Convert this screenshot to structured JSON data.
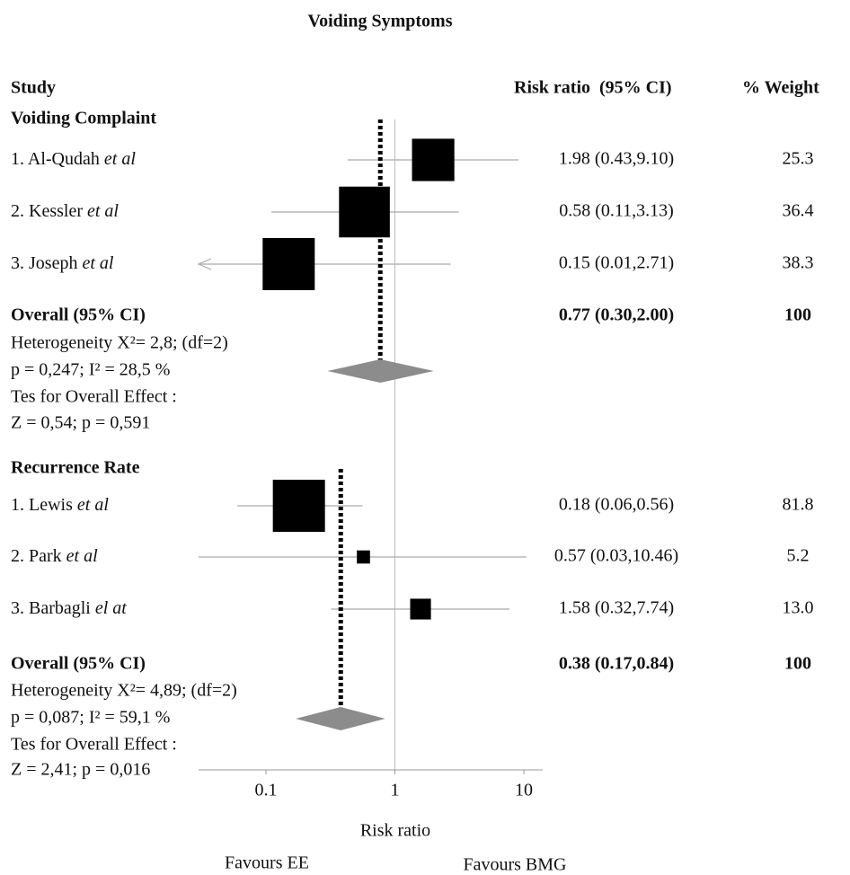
{
  "chart_data": {
    "type": "forest",
    "title": "Voiding Symptoms",
    "headers": {
      "study": "Study",
      "ratio": "Risk ratio  (95% CI)",
      "weight": "% Weight"
    },
    "xlim": [
      0.03,
      14
    ],
    "xticks": [
      0.1,
      1,
      10
    ],
    "reference_line": 1,
    "xlabel": "Risk ratio",
    "favours_left": "Favours EE",
    "favours_right": "Favours BMG",
    "groups": [
      {
        "name": "Voiding Complaint",
        "studies": [
          {
            "name": "1. Al-Qudah",
            "name_suffix": "et al",
            "value": 1.98,
            "ci_lower": 0.43,
            "ci_upper": 9.1,
            "value_label": "1.98 (0.43,9.10)",
            "weight": 25.3
          },
          {
            "name": "2. Kessler",
            "name_suffix": "et al",
            "value": 0.58,
            "ci_lower": 0.11,
            "ci_upper": 3.13,
            "value_label": "0.58 (0.11,3.13)",
            "weight": 36.4
          },
          {
            "name": "3. Joseph",
            "name_suffix": "et al",
            "value": 0.15,
            "ci_lower": 0.01,
            "ci_upper": 2.71,
            "value_label": "0.15 (0.01,2.71)",
            "weight": 38.3
          }
        ],
        "overall": {
          "name": "Overall (95% CI)",
          "value": 0.77,
          "ci_lower": 0.3,
          "ci_upper": 2.0,
          "value_label": "0.77 (0.30,2.00)",
          "weight": 100
        },
        "notes": [
          "Heterogeneity X²= 2,8; (df=2)",
          "p = 0,247; I² = 28,5 %",
          "Tes for Overall Effect :",
          "Z = 0,54; p = 0,591"
        ]
      },
      {
        "name": "Recurrence Rate",
        "studies": [
          {
            "name": "1. Lewis",
            "name_suffix": "et al",
            "value": 0.18,
            "ci_lower": 0.06,
            "ci_upper": 0.56,
            "value_label": "0.18 (0.06,0.56)",
            "weight": 81.8
          },
          {
            "name": "2. Park",
            "name_suffix": "et al",
            "value": 0.57,
            "ci_lower": 0.03,
            "ci_upper": 10.46,
            "value_label": "0.57 (0.03,10.46)",
            "weight": 5.2
          },
          {
            "name": "3. Barbagli",
            "name_suffix": "el at",
            "value": 1.58,
            "ci_lower": 0.32,
            "ci_upper": 7.74,
            "value_label": "1.58 (0.32,7.74)",
            "weight": 13.0,
            "weight_label": "13.0"
          }
        ],
        "overall": {
          "name": "Overall (95% CI)",
          "value": 0.38,
          "ci_lower": 0.17,
          "ci_upper": 0.84,
          "value_label": "0.38 (0.17,0.84)",
          "weight": 100
        },
        "notes": [
          "Heterogeneity X²= 4,89; (df=2)",
          "p = 0,087; I² = 59,1 %",
          "Tes for Overall Effect :",
          "Z = 2,41; p = 0,016"
        ]
      }
    ]
  }
}
